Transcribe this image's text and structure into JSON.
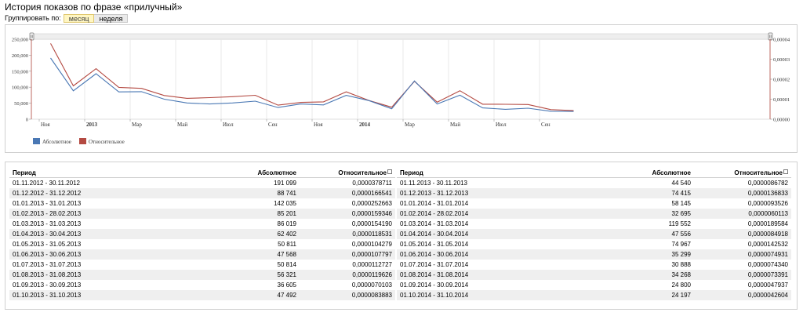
{
  "header": {
    "title": "История показов по фразе «прилучный»"
  },
  "grouping": {
    "label": "Группировать по:",
    "month_label": "месяц",
    "week_label": "неделя"
  },
  "legend": {
    "absolute": "Абсолютное",
    "relative": "Относительное"
  },
  "colors": {
    "absolute": "#4a78b4",
    "relative": "#b44a42",
    "highlight": "#fff6c2"
  },
  "chart_data": {
    "type": "line",
    "x": [
      "01.11.2012",
      "01.12.2012",
      "01.01.2013",
      "01.02.2013",
      "01.03.2013",
      "01.04.2013",
      "01.05.2013",
      "01.06.2013",
      "01.07.2013",
      "01.08.2013",
      "01.09.2013",
      "01.10.2013",
      "01.11.2013",
      "01.12.2013",
      "01.01.2014",
      "01.02.2014",
      "01.03.2014",
      "01.04.2014",
      "01.05.2014",
      "01.06.2014",
      "01.07.2014",
      "01.08.2014",
      "01.09.2014",
      "01.10.2014"
    ],
    "series": [
      {
        "name": "Абсолютное",
        "axis": "left",
        "values": [
          191099,
          88741,
          142035,
          85201,
          86019,
          62402,
          50811,
          47568,
          50814,
          56321,
          36605,
          47492,
          44540,
          74415,
          58145,
          32695,
          119552,
          47556,
          74967,
          35299,
          30888,
          34268,
          24800,
          24197
        ]
      },
      {
        "name": "Относительное",
        "axis": "right",
        "values": [
          3.78711e-05,
          1.66541e-05,
          2.52663e-05,
          1.59346e-05,
          1.5419e-05,
          1.18531e-05,
          1.04279e-05,
          1.07797e-05,
          1.12727e-05,
          1.19626e-05,
          7.0103e-06,
          8.3883e-06,
          8.6782e-06,
          1.36833e-05,
          9.3526e-06,
          6.0113e-06,
          1.89584e-05,
          8.4918e-06,
          1.42532e-05,
          7.4931e-06,
          7.434e-06,
          7.3391e-06,
          4.7937e-06,
          4.2604e-06
        ]
      }
    ],
    "x_ticks": [
      "Ноя",
      "2013",
      "Мар",
      "Май",
      "Июл",
      "Сен",
      "Ноя",
      "2014",
      "Мар",
      "Май",
      "Июл",
      "Сен"
    ],
    "y_ticks_left": [
      "0",
      "50,000",
      "100,000",
      "150,000",
      "200,000",
      "250,000"
    ],
    "y_ticks_right": [
      "0,00000",
      "0,00001",
      "0,00002",
      "0,00003",
      "0,00004"
    ],
    "ylim_left": [
      0,
      250000
    ],
    "ylim_right": [
      0,
      4e-05
    ],
    "grid": true,
    "legend_position": "bottom-left"
  },
  "table": {
    "headers": {
      "period": "Период",
      "absolute": "Абсолютное",
      "relative": "Относительное"
    },
    "left_rows": [
      {
        "period": "01.11.2012 - 30.11.2012",
        "absolute": "191 099",
        "relative": "0,0000378711"
      },
      {
        "period": "01.12.2012 - 31.12.2012",
        "absolute": "88 741",
        "relative": "0,0000166541"
      },
      {
        "period": "01.01.2013 - 31.01.2013",
        "absolute": "142 035",
        "relative": "0,0000252663"
      },
      {
        "period": "01.02.2013 - 28.02.2013",
        "absolute": "85 201",
        "relative": "0,0000159346"
      },
      {
        "period": "01.03.2013 - 31.03.2013",
        "absolute": "86 019",
        "relative": "0,0000154190"
      },
      {
        "period": "01.04.2013 - 30.04.2013",
        "absolute": "62 402",
        "relative": "0,0000118531"
      },
      {
        "period": "01.05.2013 - 31.05.2013",
        "absolute": "50 811",
        "relative": "0,0000104279"
      },
      {
        "period": "01.06.2013 - 30.06.2013",
        "absolute": "47 568",
        "relative": "0,0000107797"
      },
      {
        "period": "01.07.2013 - 31.07.2013",
        "absolute": "50 814",
        "relative": "0,0000112727"
      },
      {
        "period": "01.08.2013 - 31.08.2013",
        "absolute": "56 321",
        "relative": "0,0000119626"
      },
      {
        "period": "01.09.2013 - 30.09.2013",
        "absolute": "36 605",
        "relative": "0,0000070103"
      },
      {
        "period": "01.10.2013 - 31.10.2013",
        "absolute": "47 492",
        "relative": "0,0000083883"
      }
    ],
    "right_rows": [
      {
        "period": "01.11.2013 - 30.11.2013",
        "absolute": "44 540",
        "relative": "0,0000086782"
      },
      {
        "period": "01.12.2013 - 31.12.2013",
        "absolute": "74 415",
        "relative": "0,0000136833"
      },
      {
        "period": "01.01.2014 - 31.01.2014",
        "absolute": "58 145",
        "relative": "0,0000093526"
      },
      {
        "period": "01.02.2014 - 28.02.2014",
        "absolute": "32 695",
        "relative": "0,0000060113"
      },
      {
        "period": "01.03.2014 - 31.03.2014",
        "absolute": "119 552",
        "relative": "0,0000189584"
      },
      {
        "period": "01.04.2014 - 30.04.2014",
        "absolute": "47 556",
        "relative": "0,0000084918"
      },
      {
        "period": "01.05.2014 - 31.05.2014",
        "absolute": "74 967",
        "relative": "0,0000142532"
      },
      {
        "period": "01.06.2014 - 30.06.2014",
        "absolute": "35 299",
        "relative": "0,0000074931"
      },
      {
        "period": "01.07.2014 - 31.07.2014",
        "absolute": "30 888",
        "relative": "0,0000074340"
      },
      {
        "period": "01.08.2014 - 31.08.2014",
        "absolute": "34 268",
        "relative": "0,0000073391"
      },
      {
        "period": "01.09.2014 - 30.09.2014",
        "absolute": "24 800",
        "relative": "0,0000047937"
      },
      {
        "period": "01.10.2014 - 31.10.2014",
        "absolute": "24 197",
        "relative": "0,0000042604"
      }
    ]
  }
}
